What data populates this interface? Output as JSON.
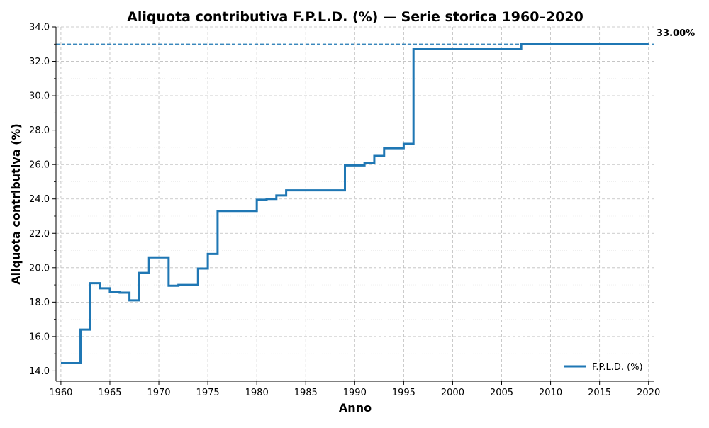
{
  "chart_data": {
    "type": "line",
    "step": "post",
    "title": "Aliquota contributiva F.P.L.D. (%) — Serie storica 1960–2020",
    "xlabel": "Anno",
    "ylabel": "Aliquota contributiva (%)",
    "xlim": [
      1959.5,
      2020.6
    ],
    "ylim": [
      13.4,
      34.0
    ],
    "xticks": [
      1960,
      1965,
      1970,
      1975,
      1980,
      1985,
      1990,
      1995,
      2000,
      2005,
      2010,
      2015,
      2020
    ],
    "yticks": [
      14,
      16,
      18,
      20,
      22,
      24,
      26,
      28,
      30,
      32,
      34
    ],
    "xtick_labels": [
      "1960",
      "1965",
      "1970",
      "1975",
      "1980",
      "1985",
      "1990",
      "1995",
      "2000",
      "2005",
      "2010",
      "2015",
      "2020"
    ],
    "ytick_labels": [
      "14.0",
      "16.0",
      "18.0",
      "20.0",
      "22.0",
      "24.0",
      "26.0",
      "28.0",
      "30.0",
      "32.0",
      "34.0"
    ],
    "grid": true,
    "legend_position": "bottom-right",
    "series": [
      {
        "name": "F.P.L.D. (%)",
        "color": "#1f77b4",
        "x": [
          1960,
          1962,
          1963,
          1964,
          1965,
          1966,
          1967,
          1968,
          1969,
          1971,
          1972,
          1974,
          1975,
          1976,
          1980,
          1981,
          1982,
          1983,
          1989,
          1991,
          1992,
          1993,
          1995,
          1996,
          2007,
          2020
        ],
        "y": [
          14.45,
          16.4,
          19.1,
          18.8,
          18.6,
          18.55,
          18.1,
          19.7,
          20.6,
          18.95,
          19.0,
          19.95,
          20.8,
          23.3,
          23.95,
          24.0,
          24.2,
          24.5,
          25.95,
          26.1,
          26.5,
          26.95,
          27.2,
          32.7,
          33.0,
          33.0
        ]
      }
    ],
    "reference_line": {
      "y": 33.0,
      "label": "33.00%",
      "color": "#1f77b4",
      "style": "dashed"
    }
  }
}
